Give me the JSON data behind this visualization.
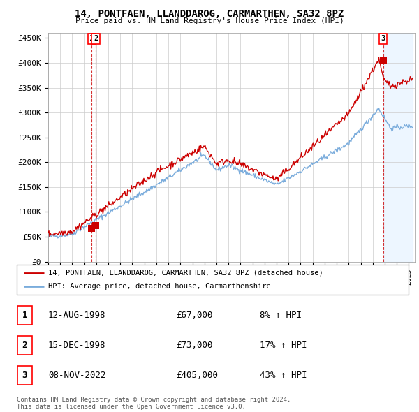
{
  "title": "14, PONTFAEN, LLANDDAROG, CARMARTHEN, SA32 8PZ",
  "subtitle": "Price paid vs. HM Land Registry's House Price Index (HPI)",
  "ylim": [
    0,
    460000
  ],
  "yticks": [
    0,
    50000,
    100000,
    150000,
    200000,
    250000,
    300000,
    350000,
    400000,
    450000
  ],
  "ytick_labels": [
    "£0",
    "£50K",
    "£100K",
    "£150K",
    "£200K",
    "£250K",
    "£300K",
    "£350K",
    "£400K",
    "£450K"
  ],
  "price_paid_color": "#cc0000",
  "hpi_color": "#7aacdc",
  "grid_color": "#cccccc",
  "shade_color": "#ddeeff",
  "transactions": [
    {
      "date_num": 1998.62,
      "price": 67000,
      "label": "1"
    },
    {
      "date_num": 1998.96,
      "price": 73000,
      "label": "2"
    },
    {
      "date_num": 2022.86,
      "price": 405000,
      "label": "3"
    }
  ],
  "legend_entries": [
    "14, PONTFAEN, LLANDDAROG, CARMARTHEN, SA32 8PZ (detached house)",
    "HPI: Average price, detached house, Carmarthenshire"
  ],
  "table_rows": [
    {
      "num": "1",
      "date": "12-AUG-1998",
      "price": "£67,000",
      "hpi": "8% ↑ HPI"
    },
    {
      "num": "2",
      "date": "15-DEC-1998",
      "price": "£73,000",
      "hpi": "17% ↑ HPI"
    },
    {
      "num": "3",
      "date": "08-NOV-2022",
      "price": "£405,000",
      "hpi": "43% ↑ HPI"
    }
  ],
  "footer": "Contains HM Land Registry data © Crown copyright and database right 2024.\nThis data is licensed under the Open Government Licence v3.0.",
  "xmin": 1995.0,
  "xmax": 2025.5
}
